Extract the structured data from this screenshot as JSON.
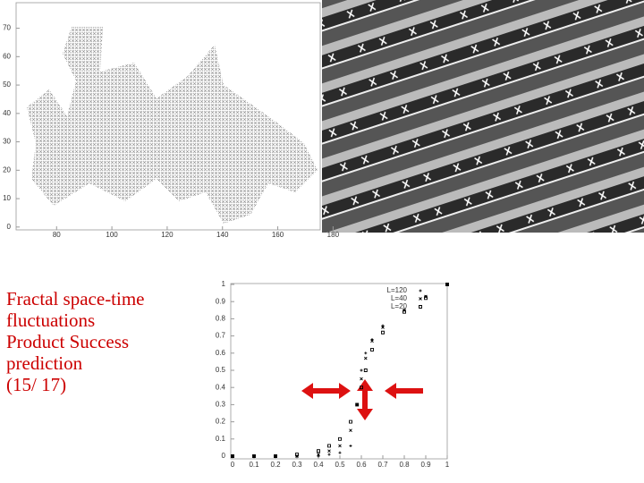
{
  "slide_text": [
    "Fractal space-time",
    "fluctuations",
    "Product Success",
    "prediction",
    "(15/ 17)"
  ],
  "cluster_plot": {
    "xlim": [
      66,
      176
    ],
    "ylim": [
      -1,
      79
    ],
    "xticks": [
      80,
      100,
      120,
      140,
      160,
      180
    ],
    "yticks": [
      0,
      10,
      20,
      30,
      40,
      50,
      60,
      70
    ]
  },
  "chart_data": {
    "type": "scatter",
    "x": [
      0,
      0.1,
      0.2,
      0.3,
      0.4,
      0.45,
      0.5,
      0.55,
      0.58,
      0.6,
      0.62,
      0.65,
      0.7,
      0.8,
      0.9,
      1
    ],
    "series": [
      {
        "name": "L=120",
        "color": "#000000",
        "values": [
          0,
          0,
          0,
          0,
          0,
          0.01,
          0.02,
          0.06,
          0.3,
          0.5,
          0.6,
          0.68,
          0.76,
          0.85,
          0.93,
          1
        ]
      },
      {
        "name": "L=40",
        "color": "#000000",
        "values": [
          0,
          0,
          0,
          0,
          0.01,
          0.03,
          0.06,
          0.15,
          0.3,
          0.45,
          0.57,
          0.67,
          0.75,
          0.85,
          0.93,
          1
        ]
      },
      {
        "name": "L=20",
        "color": "#000000",
        "values": [
          0,
          0,
          0,
          0.01,
          0.03,
          0.06,
          0.1,
          0.2,
          0.3,
          0.4,
          0.5,
          0.62,
          0.72,
          0.84,
          0.92,
          1
        ]
      }
    ],
    "xlim": [
      0,
      1
    ],
    "ylim": [
      0,
      1
    ],
    "xticks": [
      0,
      0.1,
      0.2,
      0.3,
      0.4,
      0.5,
      0.6,
      0.7,
      0.8,
      0.9,
      1
    ],
    "yticks": [
      0,
      0.1,
      0.2,
      0.3,
      0.4,
      0.5,
      0.6,
      0.7,
      0.8,
      0.9,
      1
    ]
  }
}
